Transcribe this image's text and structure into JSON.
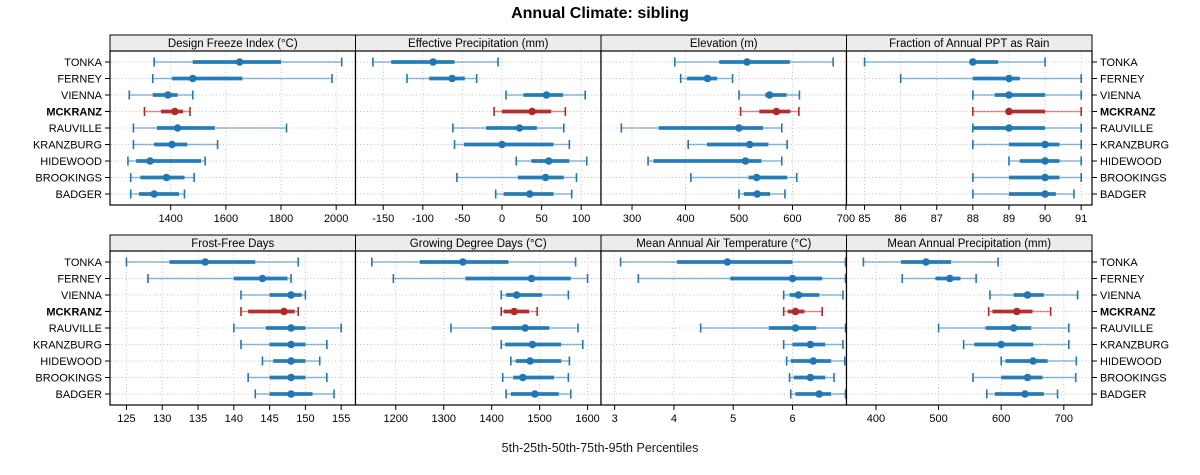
{
  "chart_data": {
    "type": "dotplot",
    "title": "Annual Climate: sibling",
    "caption": "5th-25th-50th-75th-95th Percentiles",
    "percentile_labels": [
      "5th",
      "25th",
      "50th",
      "75th",
      "95th"
    ],
    "stations": [
      "TONKA",
      "FERNEY",
      "VIENNA",
      "MCKRANZ",
      "RAUVILLE",
      "KRANZBURG",
      "HIDEWOOD",
      "BROOKINGS",
      "BADGER"
    ],
    "highlight_station": "MCKRANZ",
    "colors": {
      "series": "#1f77b4",
      "highlight": "#b22727",
      "strip_bg": "#ececec",
      "grid": "#c2c2c2",
      "border": "#000000",
      "text": "#000000"
    },
    "legend_position": "none",
    "grid": "dotted",
    "panels": [
      {
        "title": "Design Freeze Index (°C)",
        "ticks": [
          1400,
          1600,
          1800,
          2000
        ],
        "xlim": [
          1180,
          2070
        ],
        "values": [
          [
            1340,
            1480,
            1650,
            1800,
            2020
          ],
          [
            1335,
            1405,
            1480,
            1660,
            1985
          ],
          [
            1250,
            1335,
            1390,
            1425,
            1480
          ],
          [
            1305,
            1365,
            1415,
            1445,
            1470
          ],
          [
            1265,
            1350,
            1425,
            1560,
            1820
          ],
          [
            1265,
            1340,
            1405,
            1460,
            1570
          ],
          [
            1245,
            1275,
            1325,
            1510,
            1525
          ],
          [
            1255,
            1290,
            1385,
            1450,
            1485
          ],
          [
            1255,
            1285,
            1340,
            1430,
            1450
          ]
        ]
      },
      {
        "title": "Effective Precipitation (mm)",
        "ticks": [
          -150,
          -100,
          -50,
          0,
          50,
          100
        ],
        "xlim": [
          -185,
          125
        ],
        "values": [
          [
            -163,
            -140,
            -87,
            -60,
            -5
          ],
          [
            -120,
            -92,
            -63,
            -47,
            -32
          ],
          [
            5,
            27,
            56,
            77,
            105
          ],
          [
            -10,
            0,
            38,
            62,
            80
          ],
          [
            -62,
            -20,
            22,
            44,
            78
          ],
          [
            -60,
            -48,
            0,
            65,
            85
          ],
          [
            18,
            37,
            59,
            85,
            107
          ],
          [
            -57,
            20,
            55,
            78,
            94
          ],
          [
            -8,
            2,
            35,
            65,
            88
          ]
        ]
      },
      {
        "title": "Elevation (m)",
        "ticks": [
          300,
          400,
          500,
          600,
          700
        ],
        "xlim": [
          242,
          701
        ],
        "values": [
          [
            380,
            463,
            515,
            595,
            676
          ],
          [
            391,
            403,
            441,
            459,
            488
          ],
          [
            500,
            549,
            557,
            589,
            613
          ],
          [
            503,
            538,
            570,
            596,
            612
          ],
          [
            280,
            350,
            500,
            545,
            580
          ],
          [
            405,
            440,
            520,
            555,
            590
          ],
          [
            330,
            340,
            512,
            542,
            580
          ],
          [
            410,
            518,
            533,
            590,
            608
          ],
          [
            500,
            509,
            534,
            558,
            586
          ]
        ]
      },
      {
        "title": "Fraction of Annual PPT as Rain",
        "ticks": [
          85,
          86,
          87,
          88,
          89,
          90,
          91
        ],
        "xlim": [
          84.5,
          91.3
        ],
        "values": [
          [
            85,
            88,
            88,
            88.7,
            90
          ],
          [
            86,
            88,
            89,
            89.3,
            91
          ],
          [
            88,
            88.6,
            89,
            90,
            91
          ],
          [
            88,
            89,
            89,
            90,
            91
          ],
          [
            88,
            88,
            89,
            90,
            91
          ],
          [
            88,
            89,
            90,
            90.4,
            91
          ],
          [
            89,
            89.3,
            90,
            90.4,
            91
          ],
          [
            88,
            89,
            90,
            90.4,
            91
          ],
          [
            88,
            89,
            90,
            90.3,
            90.8
          ]
        ]
      },
      {
        "title": "Frost-Free Days",
        "ticks": [
          125,
          130,
          135,
          140,
          145,
          150,
          155
        ],
        "xlim": [
          122.7,
          157
        ],
        "values": [
          [
            125,
            131,
            136,
            143,
            149
          ],
          [
            128,
            140,
            144,
            147.5,
            148
          ],
          [
            141,
            145,
            148,
            149.5,
            150
          ],
          [
            141,
            142,
            147,
            148.5,
            149
          ],
          [
            140,
            144.5,
            148,
            150,
            155
          ],
          [
            141,
            145,
            148,
            150,
            153
          ],
          [
            144,
            145.5,
            148,
            150,
            152
          ],
          [
            142,
            145,
            148,
            150,
            153
          ],
          [
            143,
            145,
            148,
            151,
            154
          ]
        ]
      },
      {
        "title": "Growing Degree Days (°C)",
        "ticks": [
          1200,
          1300,
          1400,
          1500,
          1600
        ],
        "xlim": [
          1116,
          1628
        ],
        "values": [
          [
            1150,
            1250,
            1340,
            1435,
            1575
          ],
          [
            1195,
            1345,
            1483,
            1565,
            1600
          ],
          [
            1420,
            1430,
            1452,
            1505,
            1560
          ],
          [
            1420,
            1425,
            1447,
            1478,
            1495
          ],
          [
            1315,
            1400,
            1470,
            1520,
            1580
          ],
          [
            1420,
            1428,
            1485,
            1545,
            1590
          ],
          [
            1440,
            1450,
            1480,
            1545,
            1562
          ],
          [
            1423,
            1445,
            1465,
            1530,
            1560
          ],
          [
            1430,
            1440,
            1490,
            1540,
            1565
          ]
        ]
      },
      {
        "title": "Mean Annual Air Temperature (°C)",
        "ticks": [
          3,
          4,
          5,
          6
        ],
        "xlim": [
          2.77,
          6.91
        ],
        "values": [
          [
            3.1,
            4.05,
            4.9,
            6.0,
            6.9
          ],
          [
            3.4,
            4.95,
            6.0,
            6.5,
            6.9
          ],
          [
            5.85,
            5.95,
            6.1,
            6.45,
            6.85
          ],
          [
            5.85,
            5.92,
            6.05,
            6.2,
            6.5
          ],
          [
            4.45,
            5.6,
            6.05,
            6.4,
            6.9
          ],
          [
            5.85,
            6.0,
            6.3,
            6.55,
            6.85
          ],
          [
            5.9,
            5.97,
            6.35,
            6.65,
            6.88
          ],
          [
            5.95,
            6.02,
            6.3,
            6.55,
            6.7
          ],
          [
            5.97,
            6.05,
            6.45,
            6.65,
            6.95
          ]
        ]
      },
      {
        "title": "Mean Annual Precipitation (mm)",
        "ticks": [
          400,
          500,
          600,
          700
        ],
        "xlim": [
          353,
          745
        ],
        "values": [
          [
            380,
            440,
            480,
            520,
            595
          ],
          [
            442,
            495,
            518,
            535,
            560
          ],
          [
            582,
            620,
            642,
            668,
            722
          ],
          [
            580,
            586,
            625,
            650,
            679
          ],
          [
            500,
            575,
            620,
            648,
            708
          ],
          [
            540,
            557,
            600,
            651,
            708
          ],
          [
            600,
            607,
            651,
            674,
            720
          ],
          [
            555,
            600,
            642,
            666,
            719
          ],
          [
            577,
            590,
            638,
            668,
            690
          ]
        ]
      }
    ]
  }
}
